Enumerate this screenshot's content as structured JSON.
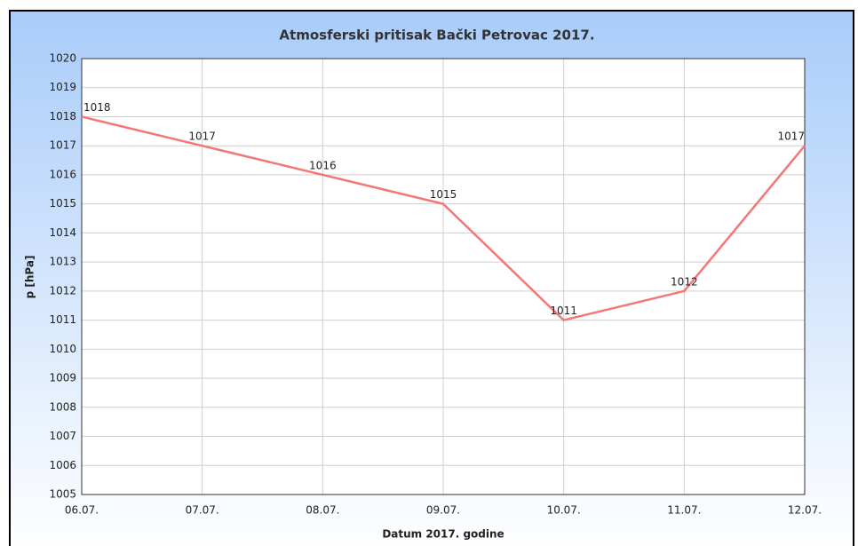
{
  "chart_data": {
    "type": "line",
    "title": "Atmosferski pritisak Bački Petrovac 2017.",
    "x_label": "Datum 2017. godine",
    "y_label": "p [hPa]",
    "categories": [
      "06.07.",
      "07.07.",
      "08.07.",
      "09.07.",
      "10.07.",
      "11.07.",
      "12.07."
    ],
    "series": [
      {
        "name": "p",
        "color": "#f47676",
        "values": [
          1018,
          1017,
          1016,
          1015,
          1011,
          1012,
          1017
        ]
      }
    ],
    "ylim": [
      1005,
      1020
    ],
    "yticks": [
      1005,
      1006,
      1007,
      1008,
      1009,
      1010,
      1011,
      1012,
      1013,
      1014,
      1015,
      1016,
      1017,
      1018,
      1019,
      1020
    ],
    "grid": true
  }
}
